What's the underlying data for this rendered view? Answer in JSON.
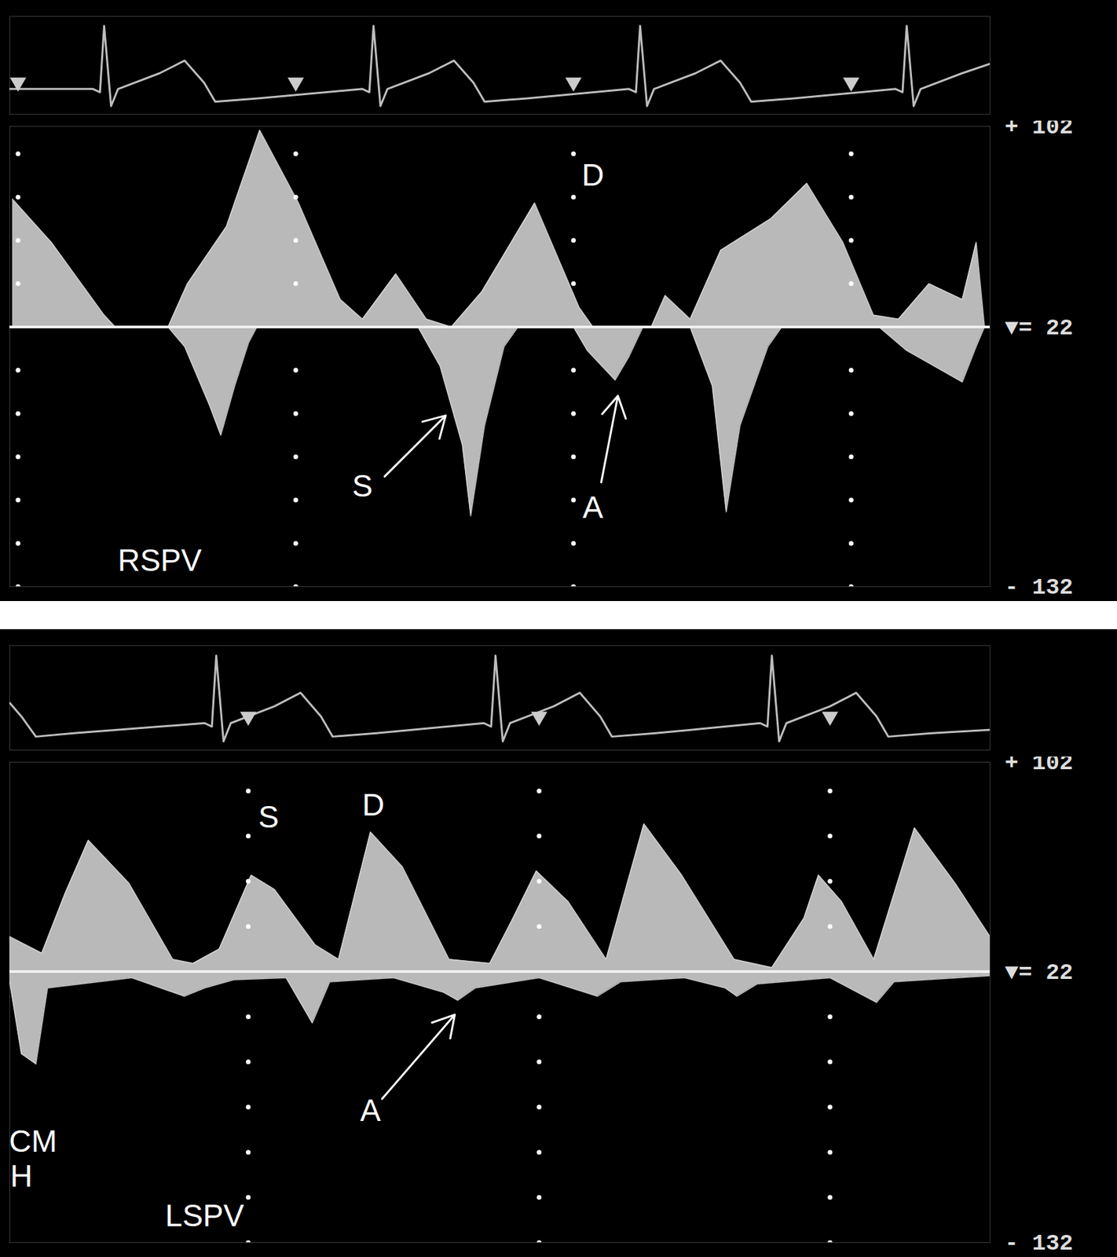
{
  "chart_data": [
    {
      "type": "area",
      "label": "RSPV",
      "tick_labels": false,
      "xlim": [
        -0.03,
        3.5
      ],
      "xticks": [
        0,
        1,
        2,
        3
      ],
      "ylim": [
        -132,
        102
      ],
      "yticks": [
        -132,
        -110,
        -88,
        -66,
        -44,
        -22,
        22,
        44,
        66,
        88
      ],
      "series": [
        {
          "color": "#d9d9d9",
          "x": [
            -0.02,
            0.12,
            0.31,
            0.35,
            0.54,
            0.61,
            0.75,
            0.87,
            1.01,
            1.16,
            1.24,
            1.36,
            1.47,
            1.56,
            1.67,
            1.86,
            2.02,
            2.07,
            2.28,
            2.33,
            2.42,
            2.53,
            2.71,
            2.84,
            2.97,
            3.08,
            3.17,
            3.28,
            3.4,
            3.45,
            3.48
          ],
          "values": [
            65,
            43,
            6,
            0,
            0,
            22,
            51,
            100,
            63,
            14,
            4,
            27,
            4,
            0,
            18,
            63,
            10,
            0,
            0,
            16,
            4,
            39,
            55,
            73,
            43,
            6,
            4,
            22,
            14,
            43,
            0
          ]
        },
        {
          "color": "#d9d9d9",
          "x": [
            -0.02,
            0.54,
            0.6,
            0.69,
            0.73,
            0.78,
            0.83,
            0.86,
            1.44,
            1.52,
            1.6,
            1.63,
            1.68,
            1.75,
            1.8,
            2.0,
            2.05,
            2.15,
            2.2,
            2.25,
            2.42,
            2.5,
            2.55,
            2.6,
            2.7,
            2.75,
            3.1,
            3.2,
            3.3,
            3.4,
            3.45,
            3.48
          ],
          "values": [
            0,
            0,
            -10,
            -40,
            -55,
            -30,
            -8,
            0,
            0,
            -20,
            -60,
            -96,
            -50,
            -10,
            0,
            0,
            -12,
            -27,
            -15,
            0,
            0,
            -30,
            -94,
            -50,
            -10,
            0,
            0,
            -12,
            -20,
            -28,
            -10,
            0
          ]
        }
      ],
      "ecg": {
        "color": "#bdbdbd",
        "ylim": [
          -0.4,
          1.15
        ],
        "x": [
          -0.03,
          0.27,
          0.295,
          0.31,
          0.335,
          0.36,
          0.51,
          0.6,
          0.67,
          0.71,
          0.86,
          1.24,
          1.265,
          1.28,
          1.305,
          1.33,
          1.48,
          1.57,
          1.64,
          1.68,
          1.83,
          2.2,
          2.225,
          2.24,
          2.265,
          2.29,
          2.44,
          2.53,
          2.6,
          2.64,
          2.79,
          3.16,
          3.185,
          3.2,
          3.225,
          3.25,
          3.4,
          3.5
        ],
        "values": [
          0,
          0,
          -0.05,
          1,
          -0.27,
          0,
          0.25,
          0.45,
          0.1,
          -0.2,
          -0.15,
          0,
          -0.05,
          1,
          -0.27,
          0,
          0.25,
          0.45,
          0.1,
          -0.2,
          -0.15,
          0,
          -0.05,
          1,
          -0.27,
          0,
          0.25,
          0.45,
          0.1,
          -0.2,
          -0.15,
          0,
          -0.05,
          1,
          -0.27,
          0,
          0.25,
          0.4
        ]
      },
      "scale_labels": [
        {
          "text": "+ 102",
          "value": 102
        },
        {
          "text": "▼= 22",
          "value": 0
        },
        {
          "text": "- 132",
          "value": -132
        }
      ],
      "annotations": [
        {
          "text": "D",
          "x": 2.07,
          "y": 77
        },
        {
          "text": "S",
          "x": 1.24,
          "y": -81,
          "arrow_from": [
            1.32,
            -76
          ],
          "arrow_to": [
            1.54,
            -45
          ]
        },
        {
          "text": "A",
          "x": 2.07,
          "y": -92,
          "arrow_from": [
            2.1,
            -79
          ],
          "arrow_to": [
            2.16,
            -35
          ]
        }
      ],
      "label_position": [
        0.51,
        -124
      ]
    },
    {
      "type": "area",
      "label": "LSPV",
      "tick_labels": false,
      "xlim": [
        0.18,
        3.55
      ],
      "xticks": [
        1,
        2,
        3
      ],
      "ylim": [
        -132,
        102
      ],
      "yticks": [
        -132,
        -110,
        -88,
        -66,
        -44,
        -22,
        22,
        44,
        66,
        88
      ],
      "series": [
        {
          "color": "#d9d9d9",
          "x": [
            0.18,
            0.29,
            0.37,
            0.45,
            0.59,
            0.74,
            0.81,
            0.9,
            1.01,
            1.09,
            1.23,
            1.31,
            1.42,
            1.53,
            1.69,
            1.83,
            1.91,
            1.99,
            2.1,
            2.23,
            2.36,
            2.49,
            2.67,
            2.8,
            2.91,
            2.96,
            3.04,
            3.15,
            3.29,
            3.43,
            3.55
          ],
          "values": [
            17,
            9,
            38,
            64,
            43,
            6,
            4,
            11,
            47,
            40,
            13,
            6,
            68,
            51,
            6,
            4,
            26,
            49,
            34,
            6,
            72,
            47,
            6,
            2,
            26,
            47,
            34,
            6,
            70,
            43,
            17
          ]
        },
        {
          "color": "#d9d9d9",
          "x": [
            0.18,
            0.22,
            0.27,
            0.31,
            0.6,
            0.78,
            0.85,
            0.95,
            1.13,
            1.22,
            1.28,
            1.5,
            1.67,
            1.72,
            1.78,
            2.0,
            2.2,
            2.28,
            2.5,
            2.64,
            2.68,
            2.75,
            3.0,
            3.16,
            3.22,
            3.55
          ],
          "values": [
            -5,
            -40,
            -45,
            -8,
            -3,
            -12,
            -8,
            -4,
            -3,
            -25,
            -5,
            -3,
            -10,
            -14,
            -8,
            -3,
            -12,
            -5,
            -3,
            -8,
            -12,
            -6,
            -3,
            -15,
            -5,
            -2
          ]
        }
      ],
      "ecg": {
        "color": "#bdbdbd",
        "ylim": [
          -0.4,
          1.15
        ],
        "x": [
          0.18,
          0.22,
          0.27,
          0.4,
          0.85,
          0.875,
          0.89,
          0.915,
          0.94,
          1.09,
          1.18,
          1.25,
          1.29,
          1.44,
          1.81,
          1.835,
          1.85,
          1.875,
          1.9,
          2.05,
          2.14,
          2.21,
          2.25,
          2.4,
          2.76,
          2.785,
          2.8,
          2.825,
          2.85,
          3.0,
          3.09,
          3.16,
          3.2,
          3.35,
          3.55
        ],
        "values": [
          0.3,
          0.1,
          -0.2,
          -0.15,
          0,
          -0.05,
          1,
          -0.27,
          0,
          0.25,
          0.45,
          0.1,
          -0.2,
          -0.15,
          0,
          -0.05,
          1,
          -0.27,
          0,
          0.25,
          0.45,
          0.1,
          -0.2,
          -0.15,
          0,
          -0.05,
          1,
          -0.27,
          0,
          0.25,
          0.45,
          0.1,
          -0.2,
          -0.15,
          -0.1
        ]
      },
      "scale_labels": [
        {
          "text": "+ 102",
          "value": 102
        },
        {
          "text": "▼= 22",
          "value": 0
        },
        {
          "text": "- 132",
          "value": -132
        }
      ],
      "annotations": [
        {
          "text": "S",
          "x": 1.07,
          "y": 75
        },
        {
          "text": "D",
          "x": 1.43,
          "y": 81
        },
        {
          "text": "A",
          "x": 1.42,
          "y": -68,
          "arrow_from": [
            1.46,
            -62
          ],
          "arrow_to": [
            1.71,
            -21
          ]
        },
        {
          "text": "CM",
          "x": 0.26,
          "y": -83
        },
        {
          "text": "H",
          "x": 0.22,
          "y": -100
        }
      ],
      "label_position": [
        0.85,
        -124
      ]
    }
  ]
}
